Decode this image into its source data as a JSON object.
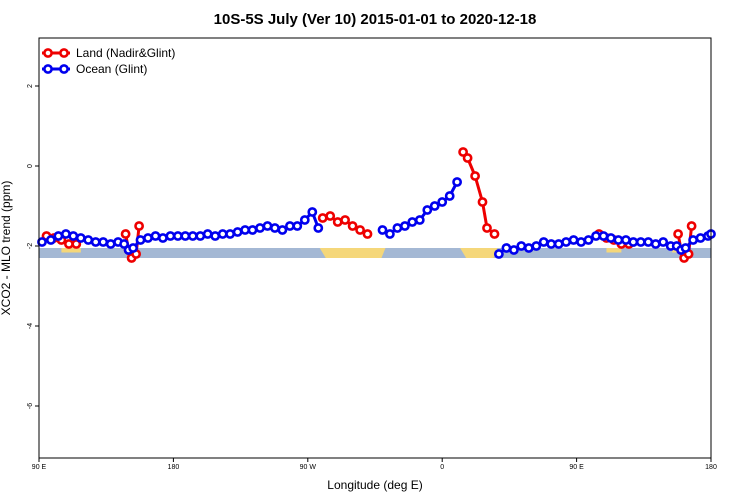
{
  "chart_data": {
    "type": "line",
    "title": "10S-5S July (Ver 10)   2015-01-01 to 2020-12-18",
    "xlabel": "Longitude (deg E)",
    "ylabel": "XCO2 - MLO trend (ppm)",
    "xlim": [
      90,
      540
    ],
    "ylim": [
      -7.3,
      3.2
    ],
    "xticks": [
      {
        "value": 90,
        "label": "90 E"
      },
      {
        "value": 180,
        "label": "180"
      },
      {
        "value": 270,
        "label": "90 W"
      },
      {
        "value": 360,
        "label": "0"
      },
      {
        "value": 450,
        "label": "90 E"
      },
      {
        "value": 540,
        "label": "180"
      }
    ],
    "yticks": [
      {
        "value": 2,
        "label": "2"
      },
      {
        "value": 0,
        "label": "0"
      },
      {
        "value": -2,
        "label": "-2"
      },
      {
        "value": -4,
        "label": "-4"
      },
      {
        "value": -6,
        "label": "-6"
      }
    ],
    "legend_position": "top-left",
    "colors": {
      "land": "#ee0000",
      "ocean": "#0000ee",
      "map_ocean": "#a4b8d4",
      "map_land": "#f5d77a"
    },
    "series": [
      {
        "name": "Land (Nadir&Glint)",
        "color": "#ee0000",
        "segments": [
          [
            [
              95,
              -1.75
            ],
            [
              100,
              -1.8
            ],
            [
              105,
              -1.85
            ],
            [
              110,
              -1.95
            ],
            [
              115,
              -1.95
            ]
          ],
          [
            [
              148,
              -1.7
            ],
            [
              150,
              -2.1
            ],
            [
              152,
              -2.3
            ],
            [
              155,
              -2.2
            ],
            [
              157,
              -1.5
            ]
          ],
          [
            [
              280,
              -1.3
            ],
            [
              285,
              -1.25
            ],
            [
              290,
              -1.4
            ],
            [
              295,
              -1.35
            ],
            [
              300,
              -1.5
            ],
            [
              305,
              -1.6
            ],
            [
              310,
              -1.7
            ]
          ],
          [
            [
              374,
              0.35
            ],
            [
              377,
              0.2
            ],
            [
              382,
              -0.25
            ],
            [
              387,
              -0.9
            ],
            [
              390,
              -1.55
            ],
            [
              395,
              -1.7
            ]
          ],
          [
            [
              465,
              -1.7
            ],
            [
              470,
              -1.8
            ],
            [
              475,
              -1.85
            ],
            [
              480,
              -1.95
            ],
            [
              485,
              -1.95
            ]
          ],
          [
            [
              518,
              -1.7
            ],
            [
              520,
              -2.1
            ],
            [
              522,
              -2.3
            ],
            [
              525,
              -2.2
            ],
            [
              527,
              -1.5
            ]
          ]
        ]
      },
      {
        "name": "Ocean (Glint)",
        "color": "#0000ee",
        "segments": [
          [
            [
              92,
              -1.9
            ],
            [
              98,
              -1.85
            ],
            [
              103,
              -1.75
            ],
            [
              108,
              -1.7
            ],
            [
              113,
              -1.75
            ],
            [
              118,
              -1.8
            ],
            [
              123,
              -1.85
            ],
            [
              128,
              -1.9
            ],
            [
              133,
              -1.9
            ],
            [
              138,
              -1.95
            ],
            [
              143,
              -1.9
            ],
            [
              147,
              -1.95
            ],
            [
              150,
              -2.1
            ],
            [
              153,
              -2.05
            ],
            [
              158,
              -1.85
            ],
            [
              163,
              -1.8
            ],
            [
              168,
              -1.75
            ],
            [
              173,
              -1.8
            ],
            [
              178,
              -1.75
            ],
            [
              183,
              -1.75
            ],
            [
              188,
              -1.75
            ],
            [
              193,
              -1.75
            ],
            [
              198,
              -1.75
            ],
            [
              203,
              -1.7
            ],
            [
              208,
              -1.75
            ],
            [
              213,
              -1.7
            ],
            [
              218,
              -1.7
            ],
            [
              223,
              -1.65
            ],
            [
              228,
              -1.6
            ],
            [
              233,
              -1.6
            ],
            [
              238,
              -1.55
            ],
            [
              243,
              -1.5
            ],
            [
              248,
              -1.55
            ],
            [
              253,
              -1.6
            ],
            [
              258,
              -1.5
            ],
            [
              263,
              -1.5
            ],
            [
              268,
              -1.35
            ],
            [
              273,
              -1.15
            ],
            [
              277,
              -1.55
            ]
          ],
          [
            [
              320,
              -1.6
            ],
            [
              325,
              -1.7
            ],
            [
              330,
              -1.55
            ],
            [
              335,
              -1.5
            ],
            [
              340,
              -1.4
            ],
            [
              345,
              -1.35
            ],
            [
              350,
              -1.1
            ],
            [
              355,
              -1.0
            ],
            [
              360,
              -0.9
            ],
            [
              365,
              -0.75
            ],
            [
              370,
              -0.4
            ]
          ],
          [
            [
              398,
              -2.2
            ],
            [
              403,
              -2.05
            ],
            [
              408,
              -2.1
            ],
            [
              413,
              -2.0
            ],
            [
              418,
              -2.05
            ],
            [
              423,
              -2.0
            ],
            [
              428,
              -1.9
            ],
            [
              433,
              -1.95
            ],
            [
              438,
              -1.95
            ],
            [
              443,
              -1.9
            ],
            [
              448,
              -1.85
            ],
            [
              453,
              -1.9
            ],
            [
              458,
              -1.85
            ],
            [
              463,
              -1.75
            ],
            [
              468,
              -1.75
            ],
            [
              473,
              -1.8
            ],
            [
              478,
              -1.85
            ],
            [
              483,
              -1.85
            ],
            [
              488,
              -1.9
            ],
            [
              493,
              -1.9
            ],
            [
              498,
              -1.9
            ],
            [
              503,
              -1.95
            ],
            [
              508,
              -1.9
            ],
            [
              513,
              -2.0
            ],
            [
              517,
              -2.0
            ],
            [
              520,
              -2.1
            ],
            [
              523,
              -2.05
            ],
            [
              528,
              -1.85
            ],
            [
              533,
              -1.8
            ],
            [
              538,
              -1.75
            ],
            [
              540,
              -1.7
            ]
          ]
        ]
      }
    ],
    "surface_strip": {
      "y_top": -2.05,
      "y_bottom": -2.3,
      "land_spans": [
        [
          278,
          322
        ],
        [
          372,
          397
        ]
      ],
      "small_land_marks": [
        [
          105,
          118
        ],
        [
          148,
          152
        ],
        [
          470,
          480
        ],
        [
          514,
          522
        ]
      ]
    }
  }
}
